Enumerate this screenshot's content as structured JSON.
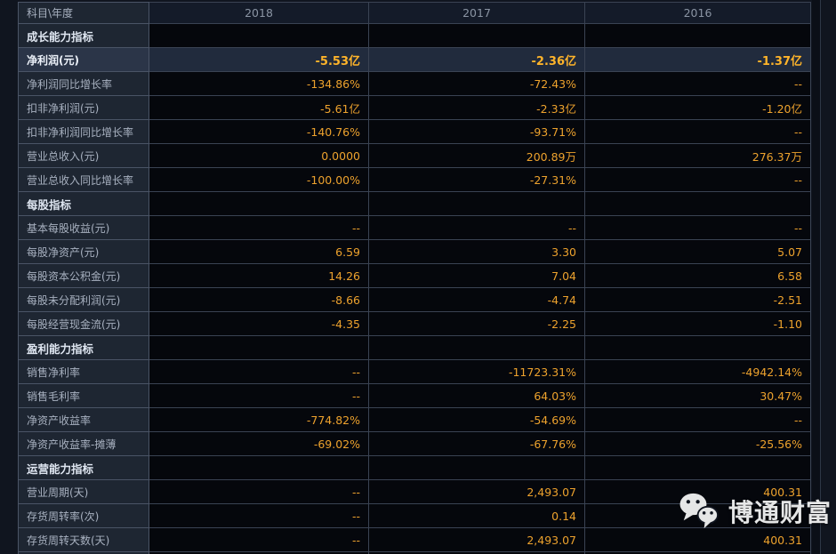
{
  "header": {
    "subject": "科目\\年度",
    "years": [
      "2018",
      "2017",
      "2016"
    ]
  },
  "rows": [
    {
      "type": "section",
      "label": "成长能力指标"
    },
    {
      "type": "data",
      "label": "净利润(元)",
      "values": [
        "-5.53亿",
        "-2.36亿",
        "-1.37亿"
      ],
      "highlight": true
    },
    {
      "type": "data",
      "label": "净利润同比增长率",
      "values": [
        "-134.86%",
        "-72.43%",
        "--"
      ]
    },
    {
      "type": "data",
      "label": "扣非净利润(元)",
      "values": [
        "-5.61亿",
        "-2.33亿",
        "-1.20亿"
      ]
    },
    {
      "type": "data",
      "label": "扣非净利润同比增长率",
      "values": [
        "-140.76%",
        "-93.71%",
        "--"
      ]
    },
    {
      "type": "data",
      "label": "营业总收入(元)",
      "values": [
        "0.0000",
        "200.89万",
        "276.37万"
      ]
    },
    {
      "type": "data",
      "label": "营业总收入同比增长率",
      "values": [
        "-100.00%",
        "-27.31%",
        "--"
      ]
    },
    {
      "type": "section",
      "label": "每股指标"
    },
    {
      "type": "data",
      "label": "基本每股收益(元)",
      "values": [
        "--",
        "--",
        "--"
      ]
    },
    {
      "type": "data",
      "label": "每股净资产(元)",
      "values": [
        "6.59",
        "3.30",
        "5.07"
      ]
    },
    {
      "type": "data",
      "label": "每股资本公积金(元)",
      "values": [
        "14.26",
        "7.04",
        "6.58"
      ]
    },
    {
      "type": "data",
      "label": "每股未分配利润(元)",
      "values": [
        "-8.66",
        "-4.74",
        "-2.51"
      ]
    },
    {
      "type": "data",
      "label": "每股经营现金流(元)",
      "values": [
        "-4.35",
        "-2.25",
        "-1.10"
      ]
    },
    {
      "type": "section",
      "label": "盈利能力指标"
    },
    {
      "type": "data",
      "label": "销售净利率",
      "values": [
        "--",
        "-11723.31%",
        "-4942.14%"
      ]
    },
    {
      "type": "data",
      "label": "销售毛利率",
      "values": [
        "--",
        "64.03%",
        "30.47%"
      ]
    },
    {
      "type": "data",
      "label": "净资产收益率",
      "values": [
        "-774.82%",
        "-54.69%",
        "--"
      ]
    },
    {
      "type": "data",
      "label": "净资产收益率-摊薄",
      "values": [
        "-69.02%",
        "-67.76%",
        "-25.56%"
      ]
    },
    {
      "type": "section",
      "label": "运营能力指标"
    },
    {
      "type": "data",
      "label": "营业周期(天)",
      "values": [
        "--",
        "2,493.07",
        "400.31"
      ]
    },
    {
      "type": "data",
      "label": "存货周转率(次)",
      "values": [
        "--",
        "0.14",
        ""
      ]
    },
    {
      "type": "data",
      "label": "存货周转天数(天)",
      "values": [
        "--",
        "2,493.07",
        "400.31"
      ]
    }
  ],
  "watermark": {
    "text": "博通财富",
    "icon": "wechat-icon"
  },
  "colors": {
    "bg": "#10151f",
    "label_bg": "#1e2632",
    "label_fg": "#a8b1c0",
    "label_line": "#4a5466",
    "grid_line": "#3a4353",
    "cell_bg": "#05070c",
    "header_bg": "#141b29",
    "header_fg": "#8a94a3",
    "section_fg": "#dfe6f1",
    "value_fg": "#eda22d",
    "highlight_label_bg": "#2b3548",
    "highlight_label_fg": "#edf2fa",
    "highlight_cell_bg": "#212b3d",
    "highlight_value_fg": "#ffb42a",
    "scroll_line": "#2e3746",
    "watermark_fg": "#f2f2f2"
  }
}
